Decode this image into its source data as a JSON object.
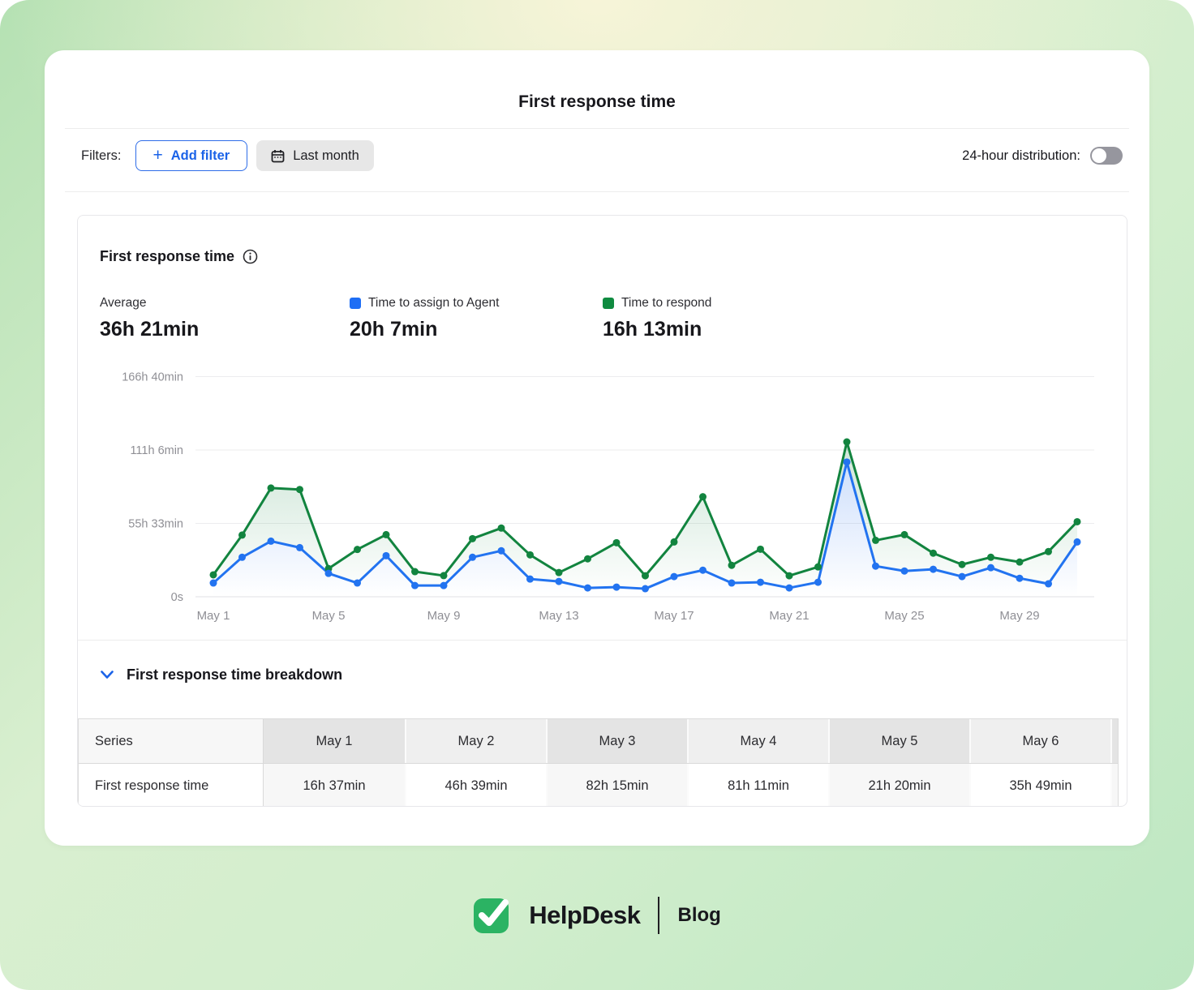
{
  "page": {
    "title": "First response time"
  },
  "filters": {
    "label": "Filters:",
    "add_filter_label": "Add filter",
    "date_range_label": "Last month",
    "distribution_label": "24-hour distribution:",
    "distribution_on": false
  },
  "panel": {
    "title": "First response time",
    "stats": [
      {
        "label": "Average",
        "value": "36h 21min",
        "color": null
      },
      {
        "label": "Time to assign to Agent",
        "value": "20h 7min",
        "color": "#1e6ef5"
      },
      {
        "label": "Time to respond",
        "value": "16h 13min",
        "color": "#0f8b40"
      }
    ]
  },
  "chart_data": {
    "type": "line",
    "title": "First response time",
    "unit": "hours",
    "xlabel": "",
    "ylabel": "",
    "ylim": [
      0,
      185
    ],
    "grid": "horizontal",
    "legend_position": "top",
    "x_labels": [
      "May 1",
      "May 2",
      "May 3",
      "May 4",
      "May 5",
      "May 6",
      "May 7",
      "May 8",
      "May 9",
      "May 10",
      "May 11",
      "May 12",
      "May 13",
      "May 14",
      "May 15",
      "May 16",
      "May 17",
      "May 18",
      "May 19",
      "May 20",
      "May 21",
      "May 22",
      "May 23",
      "May 24",
      "May 25",
      "May 26",
      "May 27",
      "May 28",
      "May 29",
      "May 30",
      "May 31"
    ],
    "x_tick_indices": [
      0,
      4,
      8,
      12,
      16,
      20,
      24,
      28
    ],
    "y_ticks": [
      {
        "label": "0s",
        "value": 0
      },
      {
        "label": "55h 33min",
        "value": 55.55
      },
      {
        "label": "111h 6min",
        "value": 111.1
      },
      {
        "label": "166h 40min",
        "value": 166.67
      }
    ],
    "series": [
      {
        "name": "Time to assign to Agent",
        "role": "lower",
        "color": "#2273f0",
        "values": [
          10.4,
          29.9,
          42.1,
          37.2,
          17.7,
          10.4,
          31.1,
          8.5,
          8.5,
          29.9,
          34.8,
          13.4,
          11.6,
          6.7,
          7.3,
          6.1,
          15.3,
          20.1,
          10.4,
          11.0,
          6.7,
          11.0,
          102.0,
          23.2,
          19.5,
          20.8,
          15.3,
          22.0,
          14.0,
          9.8,
          41.5
        ]
      },
      {
        "name": "Time to respond",
        "role": "upper",
        "color": "#12843f",
        "values": [
          16.6,
          46.7,
          82.3,
          81.2,
          21.3,
          35.8,
          47.0,
          19.0,
          16.0,
          44.0,
          52.0,
          31.7,
          18.3,
          28.7,
          40.9,
          15.9,
          41.5,
          75.7,
          23.8,
          36.0,
          15.9,
          22.6,
          117.2,
          42.7,
          47.0,
          33.0,
          24.4,
          29.9,
          26.3,
          34.2,
          56.8
        ]
      }
    ]
  },
  "breakdown": {
    "toggle_label": "First response time breakdown",
    "table": {
      "header": [
        "Series",
        "May 1",
        "May 2",
        "May 3",
        "May 4",
        "May 5",
        "May 6"
      ],
      "rows": [
        [
          "First response time",
          "16h 37min",
          "46h 39min",
          "82h 15min",
          "81h 11min",
          "21h 20min",
          "35h 49min"
        ]
      ]
    }
  },
  "footer": {
    "brand": "HelpDesk",
    "section": "Blog"
  },
  "colors": {
    "accent_blue": "#1b63e8",
    "brand_green": "#2bb363",
    "axis_text": "#8f8f95"
  }
}
